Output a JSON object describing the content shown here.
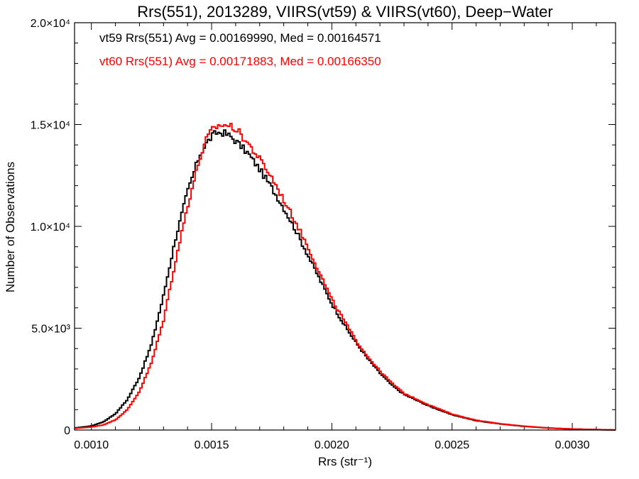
{
  "chart_data": {
    "type": "line",
    "title": "Rrs(551), 2013289, VIIRS(vt59) & VIIRS(vt60), Deep−Water",
    "xlabel": "Rrs (str⁻¹)",
    "ylabel": "Number of Observations",
    "xlim": [
      0.00093,
      0.00318
    ],
    "ylim": [
      0,
      20000
    ],
    "x_ticks": [
      {
        "value": 0.001,
        "label": "0.0010"
      },
      {
        "value": 0.0015,
        "label": "0.0015"
      },
      {
        "value": 0.002,
        "label": "0.0020"
      },
      {
        "value": 0.0025,
        "label": "0.0025"
      },
      {
        "value": 0.003,
        "label": "0.0030"
      }
    ],
    "y_ticks": [
      {
        "value": 0,
        "label": "0"
      },
      {
        "value": 5000,
        "label": "5.0×10³"
      },
      {
        "value": 10000,
        "label": "1.0×10⁴"
      },
      {
        "value": 15000,
        "label": "1.5×10⁴"
      },
      {
        "value": 20000,
        "label": "2.0×10⁴"
      }
    ],
    "annotations": [
      {
        "text": "vt59 Rrs(551) Avg = 0.00169990, Med = 0.00164571",
        "color": "#000000"
      },
      {
        "text": "vt60 Rrs(551) Avg = 0.00171883, Med = 0.00166350",
        "color": "#ff0000"
      }
    ],
    "series": [
      {
        "color": "#000000",
        "x": [
          0.00093,
          0.001,
          0.00105,
          0.0011,
          0.00115,
          0.0012,
          0.00125,
          0.0013,
          0.00135,
          0.0014,
          0.00145,
          0.00148,
          0.0015,
          0.00152,
          0.00155,
          0.00158,
          0.0016,
          0.00165,
          0.0017,
          0.00175,
          0.0018,
          0.00185,
          0.0019,
          0.00195,
          0.002,
          0.00205,
          0.0021,
          0.00215,
          0.0022,
          0.00225,
          0.0023,
          0.0024,
          0.0025,
          0.0026,
          0.0027,
          0.0028,
          0.0029,
          0.003,
          0.00318
        ],
        "y": [
          100,
          200,
          400,
          800,
          1500,
          2600,
          4200,
          6600,
          9400,
          11700,
          13500,
          14100,
          14400,
          14600,
          14600,
          14400,
          14200,
          13600,
          12800,
          11900,
          10900,
          9800,
          8600,
          7400,
          6200,
          5200,
          4300,
          3500,
          2800,
          2200,
          1750,
          1200,
          750,
          460,
          300,
          180,
          100,
          50,
          0
        ]
      },
      {
        "color": "#ff0000",
        "x": [
          0.00093,
          0.001,
          0.00105,
          0.0011,
          0.00115,
          0.0012,
          0.00125,
          0.0013,
          0.00135,
          0.0014,
          0.00145,
          0.00148,
          0.0015,
          0.00152,
          0.00155,
          0.00158,
          0.0016,
          0.00165,
          0.0017,
          0.00175,
          0.0018,
          0.00185,
          0.0019,
          0.00195,
          0.002,
          0.00205,
          0.0021,
          0.00215,
          0.0022,
          0.00225,
          0.0023,
          0.0024,
          0.0025,
          0.0026,
          0.0027,
          0.0028,
          0.0029,
          0.003,
          0.00318
        ],
        "y": [
          80,
          150,
          250,
          500,
          1000,
          1900,
          3300,
          5400,
          8300,
          11000,
          13300,
          14300,
          14700,
          14900,
          15000,
          14900,
          14800,
          14100,
          13300,
          12400,
          11300,
          10200,
          9000,
          7700,
          6400,
          5400,
          4400,
          3600,
          2900,
          2300,
          1800,
          1250,
          780,
          480,
          310,
          190,
          100,
          50,
          0
        ]
      }
    ]
  }
}
